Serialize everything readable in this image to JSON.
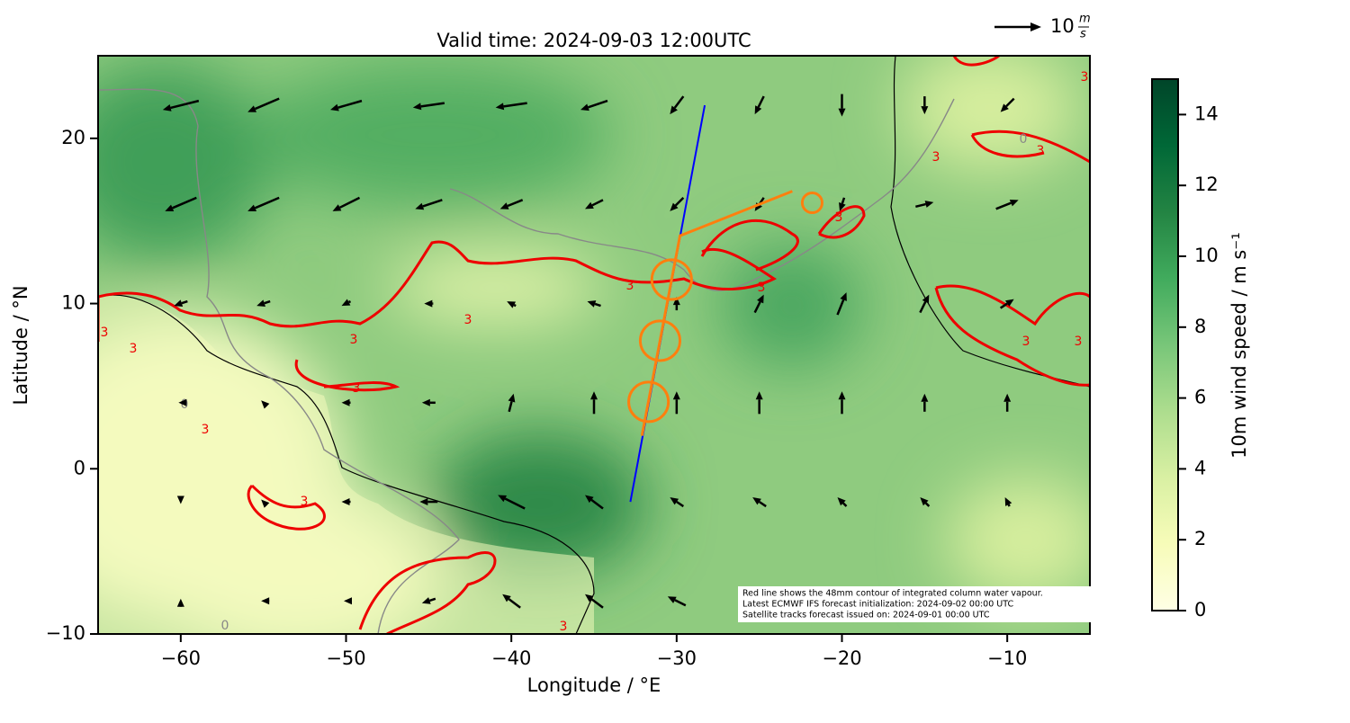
{
  "chart_data": {
    "type": "map",
    "title": "Valid time: 2024-09-03 12:00UTC",
    "x_label": "Longitude / °E",
    "y_label": "Latitude / °N",
    "xlim": [
      -65,
      -5
    ],
    "ylim": [
      -10,
      25
    ],
    "xticks": [
      {
        "value": -60,
        "label": "−60"
      },
      {
        "value": -50,
        "label": "−50"
      },
      {
        "value": -40,
        "label": "−40"
      },
      {
        "value": -30,
        "label": "−30"
      },
      {
        "value": -20,
        "label": "−20"
      },
      {
        "value": -10,
        "label": "−10"
      }
    ],
    "yticks": [
      {
        "value": -10,
        "label": "−10"
      },
      0,
      10,
      20
    ],
    "wind": {
      "color": "#000000",
      "lons": [
        -60,
        -55,
        -50,
        -45,
        -40,
        -35,
        -30,
        -25,
        -20,
        -15,
        -10
      ],
      "lats": [
        22,
        16,
        10,
        4,
        -2,
        -8
      ],
      "u": [
        [
          -8,
          -7,
          -7,
          -7,
          -7,
          -6,
          -3,
          -2,
          0,
          0,
          -3
        ],
        [
          -7,
          -7,
          -6,
          -6,
          -5,
          -4,
          -3,
          -2,
          -1,
          4,
          5
        ],
        [
          -3,
          -3,
          -2,
          -2,
          -2,
          -3,
          0,
          2,
          2,
          2,
          3
        ],
        [
          -1,
          -1,
          -2,
          -3,
          1,
          0,
          0,
          0,
          0,
          0,
          0
        ],
        [
          0,
          -1,
          -2,
          -4,
          -6,
          -4,
          -3,
          -3,
          -2,
          -2,
          -1
        ],
        [
          0,
          -1,
          -1,
          -3,
          -4,
          -4,
          -4,
          -3,
          -2,
          -2,
          -2
        ]
      ],
      "v": [
        [
          -2,
          -3,
          -2,
          -1,
          -1,
          -2,
          -4,
          -4,
          -5,
          -4,
          -3
        ],
        [
          -3,
          -3,
          -3,
          -2,
          -2,
          -2,
          -3,
          -3,
          -3,
          1,
          2
        ],
        [
          -1,
          -1,
          -1,
          0,
          1,
          1,
          3,
          4,
          5,
          4,
          2
        ],
        [
          0,
          1,
          0,
          0,
          4,
          5,
          5,
          5,
          5,
          4,
          4
        ],
        [
          -1,
          1,
          0,
          0,
          3,
          3,
          2,
          2,
          2,
          2,
          2
        ],
        [
          1,
          0,
          0,
          -1,
          3,
          3,
          2,
          2,
          2,
          2,
          1
        ]
      ]
    },
    "quiver_key": {
      "value": 10,
      "unit_num": "m",
      "unit_den": "s"
    },
    "track": {
      "color": "#ff7f0e",
      "lon": [
        -23.0,
        -29.8,
        -32.1
      ],
      "lat": [
        16.8,
        14.1,
        2.0
      ]
    },
    "circles": {
      "color": "#ff7f0e",
      "lon": [
        -30.3,
        -31.0,
        -31.7,
        -21.8
      ],
      "lat": [
        11.45,
        7.75,
        4.05,
        16.1
      ],
      "radius_deg": [
        1.2,
        1.2,
        1.2,
        0.6
      ]
    },
    "satellite_line": {
      "color": "#0000ff",
      "lon": [
        -28.3,
        -32.8
      ],
      "lat": [
        22.0,
        -2.0
      ]
    },
    "contour_labels": {
      "water_vapour": "3",
      "land": "0"
    },
    "annotation": [
      "Red line shows the 48mm contour of integrated column water vapour.",
      "Latest ECMWF IFS forecast initialization: 2024-09-02 00:00 UTC",
      "Satellite tracks forecast issued on: 2024-09-01 00:00 UTC"
    ],
    "colorbar": {
      "label": "10m wind speed / m s⁻¹",
      "lim": [
        0,
        15
      ],
      "ticks": [
        0,
        2,
        4,
        6,
        8,
        10,
        12,
        14
      ],
      "colors": [
        "#ffffe5",
        "#f7fcb9",
        "#d9f0a3",
        "#addd8e",
        "#78c679",
        "#41ab5d",
        "#238443",
        "#006837",
        "#004529"
      ]
    }
  }
}
